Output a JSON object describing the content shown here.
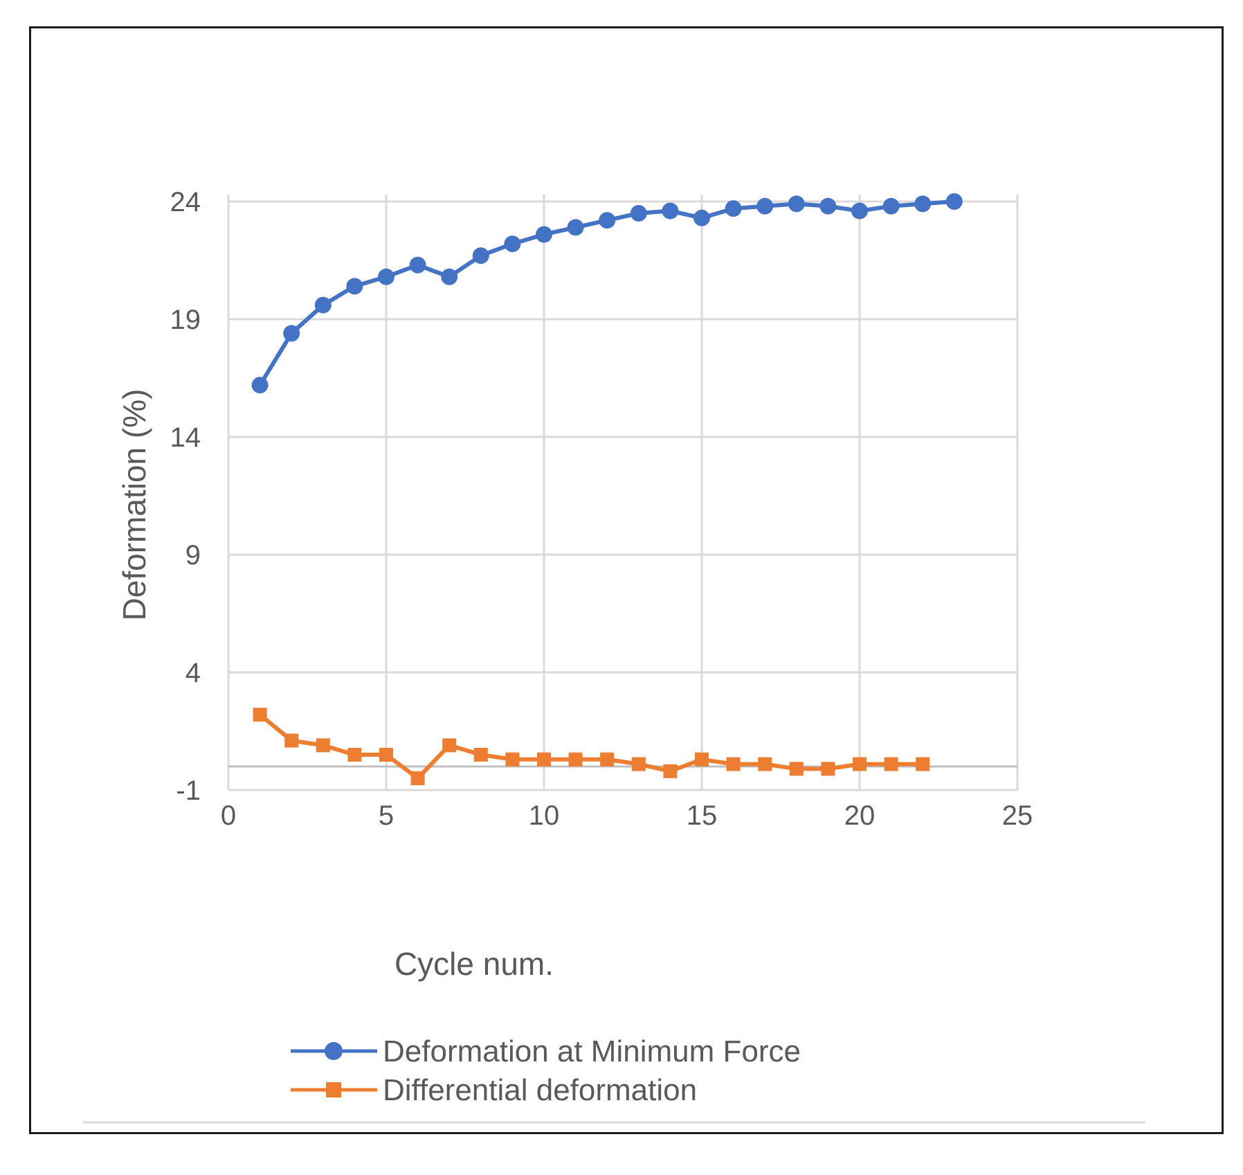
{
  "chart_data": {
    "type": "line",
    "title": "",
    "xlabel": "Cycle num.",
    "ylabel": "Deformation (%)",
    "xlim": [
      0,
      25
    ],
    "ylim": [
      -1,
      24
    ],
    "xticks": [
      "0",
      "5",
      "10",
      "15",
      "20",
      "25"
    ],
    "yticks": [
      "24",
      "19",
      "14",
      "9",
      "4",
      "-1"
    ],
    "grid": true,
    "legend_position": "bottom",
    "series": [
      {
        "name": "Deformation at Minimum Force",
        "color": "#4472C4",
        "marker": "circle",
        "x": [
          1,
          2,
          3,
          4,
          5,
          6,
          7,
          8,
          9,
          10,
          11,
          12,
          13,
          14,
          15,
          16,
          17,
          18,
          19,
          20,
          21,
          22,
          23
        ],
        "values": [
          16.2,
          18.4,
          19.6,
          20.4,
          20.8,
          21.3,
          20.8,
          21.7,
          22.2,
          22.6,
          22.9,
          23.2,
          23.5,
          23.6,
          23.3,
          23.7,
          23.8,
          23.9,
          23.8,
          23.6,
          23.8,
          23.9,
          24.0
        ]
      },
      {
        "name": "Differential deformation",
        "color": "#ED7D31",
        "marker": "square",
        "x": [
          1,
          2,
          3,
          4,
          5,
          6,
          7,
          8,
          9,
          10,
          11,
          12,
          13,
          14,
          15,
          16,
          17,
          18,
          19,
          20,
          21,
          22
        ],
        "values": [
          2.2,
          1.1,
          0.9,
          0.5,
          0.5,
          -0.5,
          0.9,
          0.5,
          0.3,
          0.3,
          0.3,
          0.3,
          0.1,
          -0.2,
          0.3,
          0.1,
          0.1,
          -0.1,
          -0.1,
          0.1,
          0.1,
          0.1
        ]
      }
    ]
  }
}
